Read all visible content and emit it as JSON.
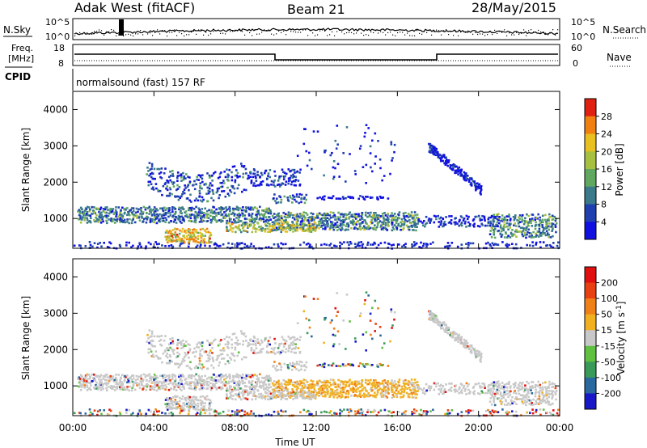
{
  "header": {
    "station": "Adak West (fitACF)",
    "beam": "Beam 21",
    "date": "28/May/2015"
  },
  "noise_panel": {
    "left_label": "N.Sky",
    "right_label": "N.Search",
    "left_ticks": [
      "10^5",
      "10^0"
    ],
    "right_ticks": [
      "10^5",
      "10^0"
    ]
  },
  "freq_panel": {
    "left_label_1": "Freq.",
    "left_label_2": "[MHz]",
    "right_label": "Nave",
    "left_ticks": [
      "18",
      "8"
    ],
    "right_ticks": [
      "60",
      "0"
    ]
  },
  "cpid_panel": {
    "label": "CPID",
    "text": "normalsound (fast) 157 RF"
  },
  "chart_data": [
    {
      "type": "heatmap",
      "name": "Power",
      "ylabel": "Slant Range [km]",
      "yticks": [
        "4000",
        "3000",
        "2000",
        "1000"
      ],
      "ylim": [
        180,
        4500
      ],
      "colorbar_label": "Power [dB]",
      "colorbar_ticks": [
        "28",
        "24",
        "20",
        "16",
        "12",
        "8",
        "4"
      ],
      "colors": [
        "#1010e0",
        "#2040b0",
        "#3a7a8a",
        "#60a860",
        "#a8c040",
        "#e8c020",
        "#f08010",
        "#e02010"
      ]
    },
    {
      "type": "heatmap",
      "name": "Velocity",
      "xlabel": "Time UT",
      "xticks": [
        "00:00",
        "04:00",
        "08:00",
        "12:00",
        "16:00",
        "20:00",
        "00:00"
      ],
      "ylabel": "Slant Range [km]",
      "yticks": [
        "4000",
        "3000",
        "2000",
        "1000"
      ],
      "ylim": [
        180,
        4500
      ],
      "colorbar_label": "Velocity [m s",
      "colorbar_label_sup": "-1",
      "colorbar_label_end": "]",
      "colorbar_ticks": [
        "200",
        "100",
        "50",
        "15",
        "-15",
        "-50",
        "-100",
        "-200"
      ],
      "colors": [
        "#1818c8",
        "#2a68a0",
        "#3a9a5a",
        "#60c040",
        "#c8c8c8",
        "#f0b020",
        "#f08018",
        "#e84010",
        "#e01010"
      ]
    }
  ]
}
